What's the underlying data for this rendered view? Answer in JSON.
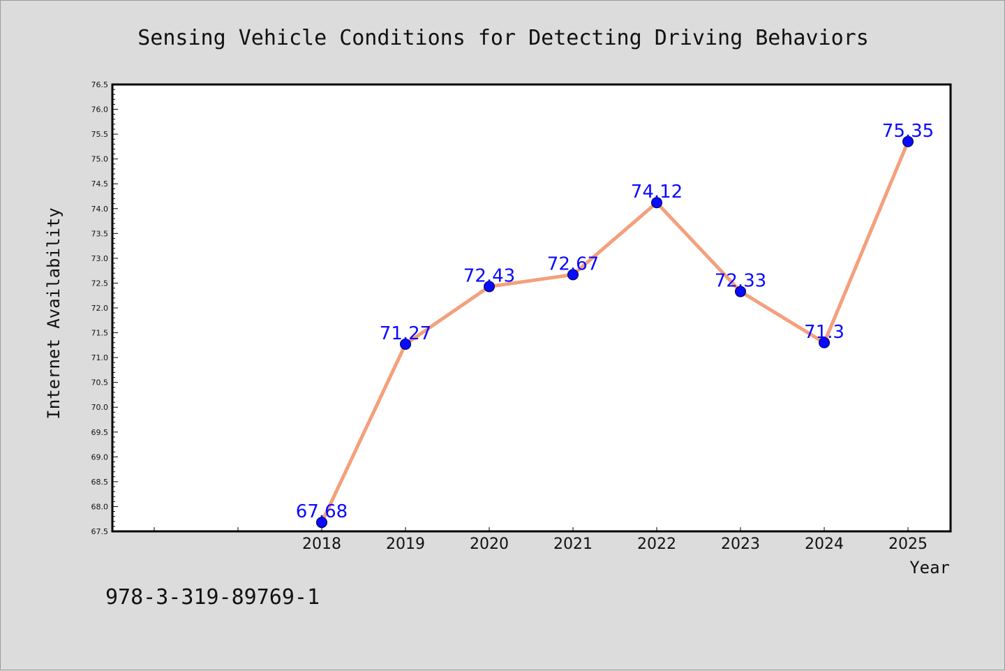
{
  "chart_data": {
    "type": "line",
    "title": "Sensing Vehicle Conditions for Detecting Driving Behaviors",
    "xlabel": "Year",
    "ylabel": "Internet Availability",
    "categories": [
      "2018",
      "2019",
      "2020",
      "2021",
      "2022",
      "2023",
      "2024",
      "2025"
    ],
    "series": [
      {
        "values": [
          67.68,
          71.27,
          72.43,
          72.67,
          74.12,
          72.33,
          71.3,
          75.35
        ],
        "data_labels": [
          "67.68",
          "71.27",
          "72.43",
          "72.67",
          "74.12",
          "72.33",
          "71.3",
          "75.35"
        ],
        "line_color": "#f4a07d",
        "marker_color": "#0a0aff",
        "label_color": "#0a0aff"
      }
    ],
    "ylim": [
      67.5,
      76.5
    ],
    "yticks": [
      "67.5",
      "68.0",
      "68.5",
      "69.0",
      "69.5",
      "70.0",
      "70.5",
      "71.0",
      "71.5",
      "72.0",
      "72.5",
      "73.0",
      "73.5",
      "74.0",
      "74.5",
      "75.0",
      "75.5",
      "76.0",
      "76.5"
    ],
    "grid": false,
    "legend": "none",
    "colors": {
      "background": "#dcdcdc",
      "plot_background": "#ffffff",
      "axes": "#000000"
    }
  },
  "footer": {
    "isbn": "978-3-319-89769-1"
  }
}
